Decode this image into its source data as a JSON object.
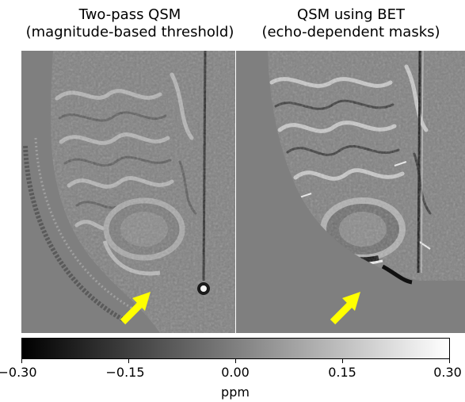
{
  "panels": [
    {
      "title_line1": "Two-pass QSM",
      "title_line2": "(magnitude-based threshold)"
    },
    {
      "title_line1": "QSM using BET",
      "title_line2": "(echo-dependent masks)"
    }
  ],
  "colorbar": {
    "ticks": [
      "−0.30",
      "−0.15",
      "0.00",
      "0.15",
      "0.30"
    ],
    "unit": "ppm",
    "colormap": "gray",
    "range": [
      -0.3,
      0.3
    ]
  },
  "annotation_color": "#ffff00",
  "arrow_icon": "arrow-up-right-icon"
}
